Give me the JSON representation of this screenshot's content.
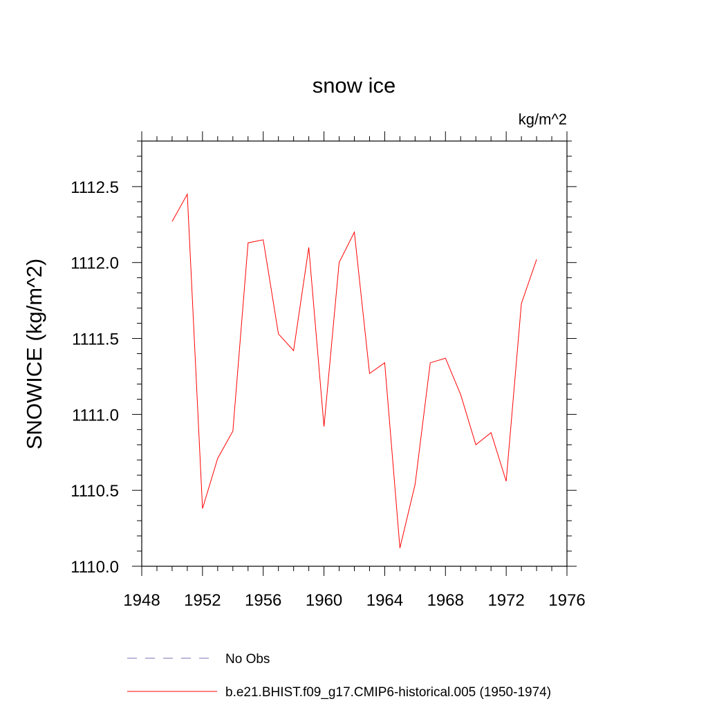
{
  "chart_data": {
    "type": "line",
    "title": "snow ice",
    "units_label": "kg/m^2",
    "ylabel": "SNOWICE  (kg/m^2)",
    "xlabel": "",
    "xlim": [
      1948,
      1976
    ],
    "ylim": [
      1110.0,
      1112.8
    ],
    "x_ticks": [
      "1948",
      "1952",
      "1956",
      "1960",
      "1964",
      "1968",
      "1972",
      "1976"
    ],
    "y_ticks": [
      "1110.0",
      "1110.5",
      "1111.0",
      "1111.5",
      "1112.0",
      "1112.5"
    ],
    "grid": false,
    "legend_placement": "bottom",
    "series": [
      {
        "name": "No Obs",
        "color": "#7b6fb5",
        "dash": "dashed",
        "x": [],
        "values": []
      },
      {
        "name": "b.e21.BHIST.f09_g17.CMIP6-historical.005 (1950-1974)",
        "color": "#ff0000",
        "dash": "solid",
        "x": [
          1950,
          1951,
          1952,
          1953,
          1954,
          1955,
          1956,
          1957,
          1958,
          1959,
          1960,
          1961,
          1962,
          1963,
          1964,
          1965,
          1966,
          1967,
          1968,
          1969,
          1970,
          1971,
          1972,
          1973,
          1974
        ],
        "values": [
          1112.27,
          1112.45,
          1110.38,
          1110.71,
          1110.89,
          1112.13,
          1112.15,
          1111.53,
          1111.42,
          1112.1,
          1110.92,
          1112.0,
          1112.2,
          1111.27,
          1111.34,
          1110.12,
          1110.54,
          1111.34,
          1111.37,
          1111.13,
          1110.8,
          1110.88,
          1110.56,
          1111.73,
          1112.02
        ]
      }
    ]
  }
}
